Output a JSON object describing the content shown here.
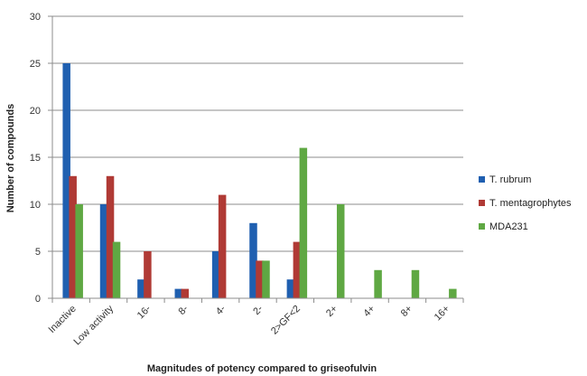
{
  "chart_data": {
    "type": "bar",
    "title": "",
    "xlabel": "Magnitudes of potency compared to griseofulvin",
    "ylabel": "Number of compounds",
    "ylim": [
      0,
      30
    ],
    "yticks": [
      0,
      5,
      10,
      15,
      20,
      25,
      30
    ],
    "grid": true,
    "legend_position": "right",
    "categories": [
      "Inactive",
      "Low activity",
      "16-",
      "8-",
      "4-",
      "2-",
      "2>GF<2",
      "2+",
      "4+",
      "8+",
      "16+"
    ],
    "series": [
      {
        "name": "T. rubrum",
        "color": "#1f5fb0",
        "values": [
          25,
          10,
          2,
          1,
          5,
          8,
          2,
          0,
          0,
          0,
          0
        ]
      },
      {
        "name": "T. mentagrophytes",
        "color": "#b03a35",
        "values": [
          13,
          13,
          5,
          1,
          11,
          4,
          6,
          0,
          0,
          0,
          0
        ]
      },
      {
        "name": "MDA231",
        "color": "#5fa843",
        "values": [
          10,
          6,
          0,
          0,
          0,
          4,
          16,
          10,
          3,
          3,
          1
        ]
      }
    ]
  }
}
